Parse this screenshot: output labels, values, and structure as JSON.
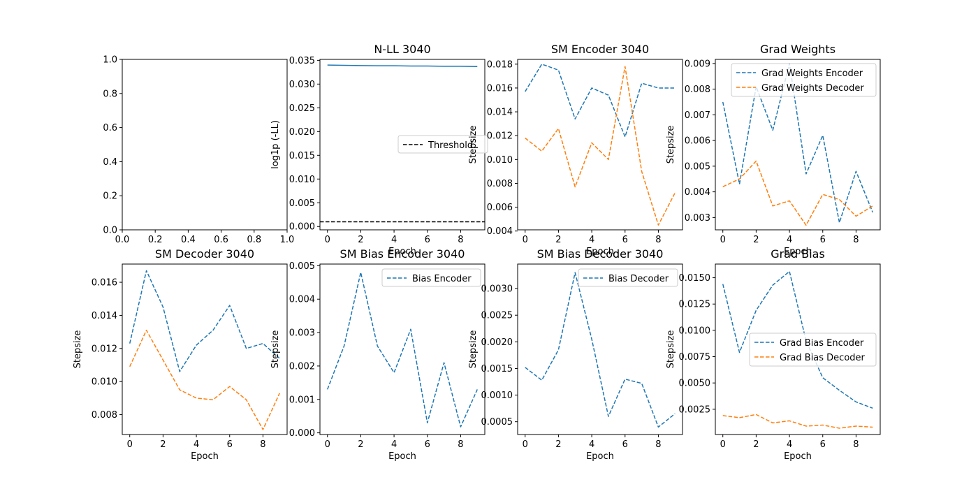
{
  "chart_data": [
    {
      "type": "line",
      "title": "",
      "xlabel": "",
      "ylabel": "",
      "xlim": [
        0.0,
        1.0
      ],
      "ylim": [
        0.0,
        1.0
      ],
      "xticks": [
        0.0,
        0.2,
        0.4,
        0.6,
        0.8,
        1.0
      ],
      "yticks": [
        0.0,
        0.2,
        0.4,
        0.6,
        0.8,
        1.0
      ],
      "xtick_labels": [
        "0.0",
        "0.2",
        "0.4",
        "0.6",
        "0.8",
        "1.0"
      ],
      "ytick_labels": [
        "0.0",
        "0.2",
        "0.4",
        "0.6",
        "0.8",
        "1.0"
      ],
      "series": [],
      "legend": null
    },
    {
      "type": "line",
      "title": "N-LL 3040",
      "xlabel": "Epoch",
      "ylabel": "log1p (-LL)",
      "xlim": [
        -0.45,
        9.45
      ],
      "ylim": [
        -0.0007,
        0.0352
      ],
      "xticks": [
        0,
        2,
        4,
        6,
        8
      ],
      "yticks": [
        0.0,
        0.005,
        0.01,
        0.015,
        0.02,
        0.025,
        0.03,
        0.035
      ],
      "xtick_labels": [
        "0",
        "2",
        "4",
        "6",
        "8"
      ],
      "ytick_labels": [
        "0.000",
        "0.005",
        "0.010",
        "0.015",
        "0.020",
        "0.025",
        "0.030",
        "0.035"
      ],
      "series": [
        {
          "color": "#1f77b4",
          "dash": false,
          "x": [
            0,
            1,
            2,
            3,
            4,
            5,
            6,
            7,
            8,
            9
          ],
          "values": [
            0.034,
            0.03395,
            0.0339,
            0.03385,
            0.03385,
            0.0338,
            0.0338,
            0.03375,
            0.03375,
            0.0337
          ]
        }
      ],
      "hlines": [
        {
          "name": "Threshold",
          "y": 0.001,
          "color": "#000000",
          "dash": true
        }
      ],
      "legend": {
        "placement": "center-right",
        "entries": [
          {
            "label": "Threshold",
            "color": "#000000"
          }
        ]
      }
    },
    {
      "type": "line",
      "title": "SM Encoder 3040",
      "xlabel": "Epoch",
      "ylabel": "Stepsize",
      "xlim": [
        -0.45,
        9.45
      ],
      "ylim": [
        0.0041,
        0.0184
      ],
      "xticks": [
        0,
        2,
        4,
        6,
        8
      ],
      "yticks": [
        0.004,
        0.006,
        0.008,
        0.01,
        0.012,
        0.014,
        0.016,
        0.018
      ],
      "xtick_labels": [
        "0",
        "2",
        "4",
        "6",
        "8"
      ],
      "ytick_labels": [
        "0.004",
        "0.006",
        "0.008",
        "0.010",
        "0.012",
        "0.014",
        "0.016",
        "0.018"
      ],
      "series": [
        {
          "color": "#1f77b4",
          "dash": true,
          "x": [
            0,
            1,
            2,
            3,
            4,
            5,
            6,
            7,
            8,
            9
          ],
          "values": [
            0.0157,
            0.018,
            0.0175,
            0.0134,
            0.016,
            0.0154,
            0.0119,
            0.0164,
            0.016,
            0.016
          ]
        },
        {
          "color": "#ff7f0e",
          "dash": true,
          "x": [
            0,
            1,
            2,
            3,
            4,
            5,
            6,
            7,
            8,
            9
          ],
          "values": [
            0.0118,
            0.0107,
            0.0126,
            0.0077,
            0.0114,
            0.01,
            0.0178,
            0.009,
            0.0045,
            0.0072
          ]
        }
      ],
      "legend": null
    },
    {
      "type": "line",
      "title": "Grad Weights",
      "xlabel": "Epoch",
      "ylabel": "Stepsize",
      "xlim": [
        -0.45,
        9.45
      ],
      "ylim": [
        0.00252,
        0.00916
      ],
      "xticks": [
        0,
        2,
        4,
        6,
        8
      ],
      "yticks": [
        0.003,
        0.004,
        0.005,
        0.006,
        0.007,
        0.008,
        0.009
      ],
      "xtick_labels": [
        "0",
        "2",
        "4",
        "6",
        "8"
      ],
      "ytick_labels": [
        "0.003",
        "0.004",
        "0.005",
        "0.006",
        "0.007",
        "0.008",
        "0.009"
      ],
      "series": [
        {
          "name": "Grad Weights Encoder",
          "color": "#1f77b4",
          "dash": true,
          "x": [
            0,
            1,
            2,
            3,
            4,
            5,
            6,
            7,
            8,
            9
          ],
          "values": [
            0.0075,
            0.0043,
            0.0081,
            0.0064,
            0.009,
            0.0047,
            0.0062,
            0.0028,
            0.0048,
            0.0032
          ]
        },
        {
          "name": "Grad Weights Decoder",
          "color": "#ff7f0e",
          "dash": true,
          "x": [
            0,
            1,
            2,
            3,
            4,
            5,
            6,
            7,
            8,
            9
          ],
          "values": [
            0.0042,
            0.0045,
            0.0052,
            0.00345,
            0.00365,
            0.0027,
            0.0039,
            0.0037,
            0.00305,
            0.00345
          ]
        }
      ],
      "legend": {
        "placement": "upper-right",
        "entries": [
          {
            "label": "Grad Weights Encoder",
            "color": "#1f77b4"
          },
          {
            "label": "Grad Weights Decoder",
            "color": "#ff7f0e"
          }
        ]
      }
    },
    {
      "type": "line",
      "title": "SM Decoder 3040",
      "xlabel": "Epoch",
      "ylabel": "Stepsize",
      "xlim": [
        -0.45,
        9.45
      ],
      "ylim": [
        0.0068,
        0.0171
      ],
      "xticks": [
        0,
        2,
        4,
        6,
        8
      ],
      "yticks": [
        0.008,
        0.01,
        0.012,
        0.014,
        0.016
      ],
      "xtick_labels": [
        "0",
        "2",
        "4",
        "6",
        "8"
      ],
      "ytick_labels": [
        "0.008",
        "0.010",
        "0.012",
        "0.014",
        "0.016"
      ],
      "series": [
        {
          "color": "#1f77b4",
          "dash": true,
          "x": [
            0,
            1,
            2,
            3,
            4,
            5,
            6,
            7,
            8,
            9
          ],
          "values": [
            0.0123,
            0.0167,
            0.0145,
            0.0106,
            0.0122,
            0.0131,
            0.0146,
            0.012,
            0.0123,
            0.0114
          ]
        },
        {
          "color": "#ff7f0e",
          "dash": true,
          "x": [
            0,
            1,
            2,
            3,
            4,
            5,
            6,
            7,
            8,
            9
          ],
          "values": [
            0.0109,
            0.0131,
            0.0113,
            0.0095,
            0.009,
            0.0089,
            0.0097,
            0.0089,
            0.0071,
            0.0093
          ]
        }
      ],
      "legend": null
    },
    {
      "type": "line",
      "title": "SM Bias Encoder 3040",
      "xlabel": "Epoch",
      "ylabel": "Stepsize",
      "xlim": [
        -0.45,
        9.45
      ],
      "ylim": [
        -5e-05,
        0.00505
      ],
      "xticks": [
        0,
        2,
        4,
        6,
        8
      ],
      "yticks": [
        0.0,
        0.001,
        0.002,
        0.003,
        0.004,
        0.005
      ],
      "xtick_labels": [
        "0",
        "2",
        "4",
        "6",
        "8"
      ],
      "ytick_labels": [
        "0.000",
        "0.001",
        "0.002",
        "0.003",
        "0.004",
        "0.005"
      ],
      "series": [
        {
          "name": "Bias Encoder",
          "color": "#1f77b4",
          "dash": true,
          "x": [
            0,
            1,
            2,
            3,
            4,
            5,
            6,
            7,
            8,
            9
          ],
          "values": [
            0.0013,
            0.0026,
            0.0048,
            0.0026,
            0.0018,
            0.0031,
            0.0003,
            0.0021,
            0.00018,
            0.0013
          ]
        }
      ],
      "legend": {
        "placement": "upper-right",
        "entries": [
          {
            "label": "Bias Encoder",
            "color": "#1f77b4"
          }
        ]
      }
    },
    {
      "type": "line",
      "title": "SM Bias Decoder 3040",
      "xlabel": "Epoch",
      "ylabel": "Stepsize",
      "xlim": [
        -0.45,
        9.45
      ],
      "ylim": [
        0.00026,
        0.00346
      ],
      "xticks": [
        0,
        2,
        4,
        6,
        8
      ],
      "yticks": [
        0.0005,
        0.001,
        0.0015,
        0.002,
        0.0025,
        0.003
      ],
      "xtick_labels": [
        "0",
        "2",
        "4",
        "6",
        "8"
      ],
      "ytick_labels": [
        "0.0005",
        "0.0010",
        "0.0015",
        "0.0020",
        "0.0025",
        "0.0030"
      ],
      "series": [
        {
          "name": "Bias Decoder",
          "color": "#1f77b4",
          "dash": true,
          "x": [
            0,
            1,
            2,
            3,
            4,
            5,
            6,
            7,
            8,
            9
          ],
          "values": [
            0.00152,
            0.00128,
            0.00185,
            0.0033,
            0.00205,
            0.0006,
            0.0013,
            0.00122,
            0.0004,
            0.00065
          ]
        }
      ],
      "legend": {
        "placement": "upper-right",
        "entries": [
          {
            "label": "Bias Decoder",
            "color": "#1f77b4"
          }
        ]
      }
    },
    {
      "type": "line",
      "title": "Grad Bias",
      "xlabel": "Epoch",
      "ylabel": "Stepsize",
      "xlim": [
        -0.45,
        9.45
      ],
      "ylim": [
        0.0001,
        0.0163
      ],
      "xticks": [
        0,
        2,
        4,
        6,
        8
      ],
      "yticks": [
        0.0025,
        0.005,
        0.0075,
        0.01,
        0.0125,
        0.015
      ],
      "xtick_labels": [
        "0",
        "2",
        "4",
        "6",
        "8"
      ],
      "ytick_labels": [
        "0.0025",
        "0.0050",
        "0.0075",
        "0.0100",
        "0.0125",
        "0.0150"
      ],
      "series": [
        {
          "name": "Grad Bias Encoder",
          "color": "#1f77b4",
          "dash": true,
          "x": [
            0,
            1,
            2,
            3,
            4,
            5,
            6,
            7,
            8,
            9
          ],
          "values": [
            0.0144,
            0.0079,
            0.0119,
            0.0143,
            0.0156,
            0.009,
            0.0055,
            0.0043,
            0.0032,
            0.0026
          ]
        },
        {
          "name": "Grad Bias Decoder",
          "color": "#ff7f0e",
          "dash": true,
          "x": [
            0,
            1,
            2,
            3,
            4,
            5,
            6,
            7,
            8,
            9
          ],
          "values": [
            0.0019,
            0.0017,
            0.002,
            0.0012,
            0.0014,
            0.0009,
            0.001,
            0.0007,
            0.0009,
            0.0008
          ]
        }
      ],
      "legend": {
        "placement": "center-right",
        "entries": [
          {
            "label": "Grad Bias Encoder",
            "color": "#1f77b4"
          },
          {
            "label": "Grad Bias Decoder",
            "color": "#ff7f0e"
          }
        ]
      }
    }
  ]
}
